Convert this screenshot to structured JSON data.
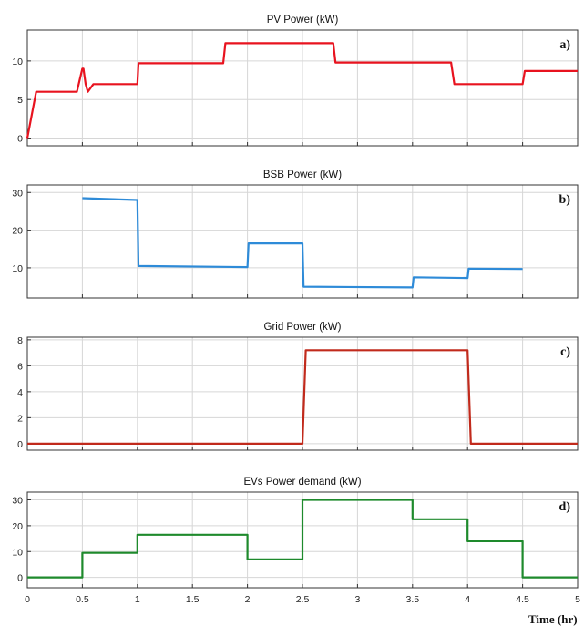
{
  "xlabel": "Time (hr)",
  "chart_data": [
    {
      "type": "line",
      "title": "PV Power (kW)",
      "panel_label": "a)",
      "color": "#e8131f",
      "xlim": [
        0,
        5
      ],
      "ylim": [
        -1,
        14
      ],
      "yticks": [
        0,
        5,
        10
      ],
      "xticks": [
        0,
        0.5,
        1,
        1.5,
        2,
        2.5,
        3,
        3.5,
        4,
        4.5,
        5
      ],
      "show_xtick_labels": false,
      "grid": true,
      "series": [
        {
          "x": [
            0,
            0.08,
            0.2,
            0.45,
            0.5,
            0.51,
            0.53,
            0.55,
            0.6,
            1,
            1.01,
            1.05,
            1.78,
            1.8,
            2.78,
            2.8,
            3.85,
            3.88,
            4.5,
            4.52,
            5
          ],
          "y": [
            0,
            6,
            6,
            6,
            9,
            9,
            7,
            6,
            7,
            7,
            9.7,
            9.7,
            9.7,
            12.3,
            12.3,
            9.8,
            9.8,
            7,
            7,
            8.7,
            8.7
          ]
        }
      ]
    },
    {
      "type": "line",
      "title": "BSB Power (kW)",
      "panel_label": "b)",
      "color": "#2e8bd8",
      "xlim": [
        0,
        5
      ],
      "ylim": [
        2,
        32
      ],
      "yticks": [
        10,
        20,
        30
      ],
      "xticks": [
        0,
        0.5,
        1,
        1.5,
        2,
        2.5,
        3,
        3.5,
        4,
        4.5,
        5
      ],
      "show_xtick_labels": false,
      "grid": true,
      "series": [
        {
          "x": [
            0.5,
            1,
            1.01,
            2,
            2.01,
            2.5,
            2.51,
            3.5,
            3.51,
            4,
            4.01,
            4.5
          ],
          "y": [
            28.5,
            28,
            10.5,
            10.2,
            16.5,
            16.5,
            5,
            4.8,
            7.5,
            7.3,
            9.8,
            9.7
          ]
        }
      ]
    },
    {
      "type": "line",
      "title": "Grid Power (kW)",
      "panel_label": "c)",
      "color": "#c12a1c",
      "xlim": [
        0,
        5
      ],
      "ylim": [
        -0.5,
        8.2
      ],
      "yticks": [
        0,
        2,
        4,
        6,
        8
      ],
      "xticks": [
        0,
        0.5,
        1,
        1.5,
        2,
        2.5,
        3,
        3.5,
        4,
        4.5,
        5
      ],
      "show_xtick_labels": false,
      "grid": true,
      "series": [
        {
          "x": [
            0,
            2.5,
            2.53,
            4,
            4.03,
            5
          ],
          "y": [
            0,
            0,
            7.2,
            7.2,
            0,
            0
          ]
        }
      ]
    },
    {
      "type": "line",
      "title": "EVs Power demand (kW)",
      "panel_label": "d)",
      "color": "#1e8a2c",
      "xlim": [
        0,
        5
      ],
      "ylim": [
        -4,
        33
      ],
      "yticks": [
        0,
        10,
        20,
        30
      ],
      "xticks": [
        0,
        0.5,
        1,
        1.5,
        2,
        2.5,
        3,
        3.5,
        4,
        4.5,
        5
      ],
      "xtick_labels": [
        "0",
        "0.5",
        "1",
        "1.5",
        "2",
        "2.5",
        "3",
        "3.5",
        "4",
        "4.5",
        "5"
      ],
      "show_xtick_labels": true,
      "grid": true,
      "series": [
        {
          "x": [
            0,
            0.5,
            0.5,
            1,
            1,
            2,
            2,
            2.5,
            2.5,
            3.5,
            3.5,
            4,
            4,
            4.5,
            4.5,
            5
          ],
          "y": [
            0,
            0,
            9.5,
            9.5,
            16.5,
            16.5,
            7,
            7,
            30,
            30,
            22.5,
            22.5,
            14,
            14,
            0,
            0
          ]
        }
      ]
    }
  ]
}
